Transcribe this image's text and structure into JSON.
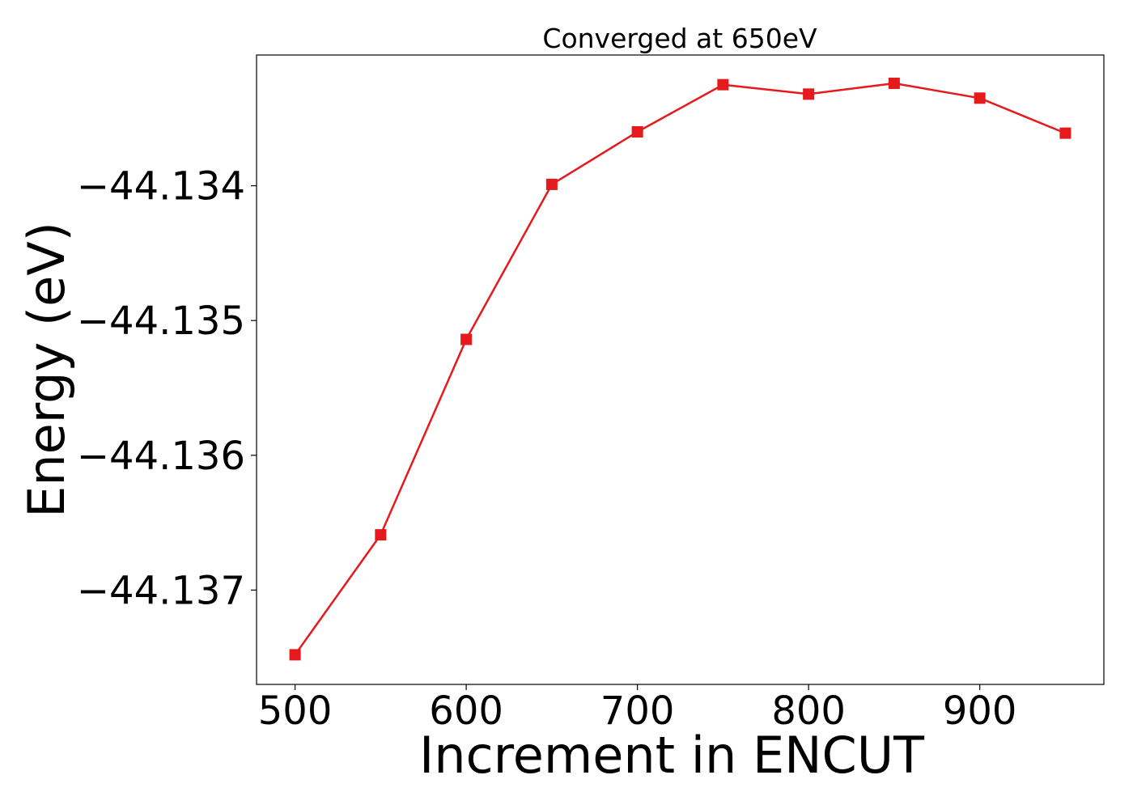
{
  "chart_data": {
    "type": "line",
    "title": "Converged at 650eV",
    "xlabel": "Increment in ENCUT",
    "ylabel": "Energy (eV)",
    "x": [
      500,
      550,
      600,
      650,
      700,
      750,
      800,
      850,
      900,
      950
    ],
    "series": [
      {
        "values": [
          -44.13748,
          -44.13659,
          -44.13514,
          -44.13399,
          -44.1336,
          -44.13325,
          -44.13332,
          -44.13324,
          -44.13335,
          -44.13361
        ],
        "color": "#e41a1c",
        "marker": "square"
      }
    ],
    "xlim": [
      477.5,
      972.5
    ],
    "ylim": [
      -44.1377,
      -44.13303
    ],
    "xticks": [
      500,
      600,
      700,
      800,
      900
    ],
    "xtick_labels": [
      "500",
      "600",
      "700",
      "800",
      "900"
    ],
    "yticks": [
      -44.137,
      -44.136,
      -44.135,
      -44.134
    ],
    "ytick_labels": [
      "−44.137",
      "−44.136",
      "−44.135",
      "−44.134"
    ],
    "grid": false,
    "legend": false
  }
}
